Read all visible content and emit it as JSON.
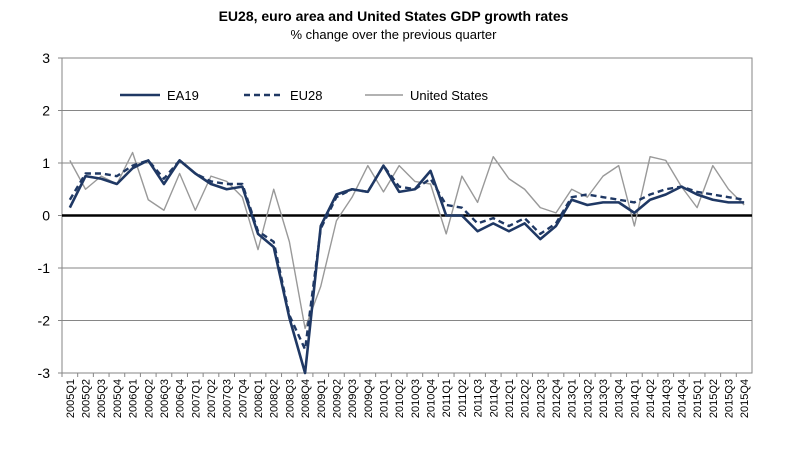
{
  "chart_data": {
    "type": "line",
    "title": "EU28, euro area and United States GDP growth rates",
    "subtitle": "% change over the previous quarter",
    "ylim": [
      -3,
      3
    ],
    "yticks": [
      -3,
      -2,
      -1,
      0,
      1,
      2,
      3
    ],
    "grid": true,
    "legend_position": "top-left",
    "categories": [
      "2005Q1",
      "2005Q2",
      "2005Q3",
      "2005Q4",
      "2006Q1",
      "2006Q2",
      "2006Q3",
      "2006Q4",
      "2007Q1",
      "2007Q2",
      "2007Q3",
      "2007Q4",
      "2008Q1",
      "2008Q2",
      "2008Q3",
      "2008Q4",
      "2009Q1",
      "2009Q2",
      "2009Q3",
      "2009Q4",
      "2010Q1",
      "2010Q2",
      "2010Q3",
      "2010Q4",
      "2011Q1",
      "2011Q2",
      "2011Q3",
      "2011Q4",
      "2012Q1",
      "2012Q2",
      "2012Q3",
      "2012Q4",
      "2013Q1",
      "2013Q2",
      "2013Q3",
      "2013Q4",
      "2014Q1",
      "2014Q2",
      "2014Q3",
      "2014Q4",
      "2015Q1",
      "2015Q2",
      "2015Q3",
      "2015Q4"
    ],
    "series": [
      {
        "name": "EA19",
        "style": "solid",
        "color": "#1f3864",
        "width": 2.6,
        "values": [
          0.15,
          0.75,
          0.7,
          0.6,
          0.9,
          1.05,
          0.6,
          1.05,
          0.8,
          0.6,
          0.5,
          0.55,
          -0.35,
          -0.6,
          -1.95,
          -3.0,
          -0.2,
          0.4,
          0.5,
          0.45,
          0.95,
          0.45,
          0.5,
          0.85,
          0.0,
          0.0,
          -0.3,
          -0.15,
          -0.3,
          -0.15,
          -0.45,
          -0.2,
          0.3,
          0.2,
          0.25,
          0.25,
          0.05,
          0.3,
          0.4,
          0.55,
          0.4,
          0.3,
          0.25,
          0.25
        ]
      },
      {
        "name": "EU28",
        "style": "dashed",
        "color": "#1f3864",
        "width": 2.4,
        "values": [
          0.3,
          0.8,
          0.8,
          0.75,
          0.95,
          1.05,
          0.7,
          1.05,
          0.8,
          0.65,
          0.6,
          0.6,
          -0.3,
          -0.5,
          -1.9,
          -2.55,
          -0.25,
          0.35,
          0.5,
          0.45,
          0.95,
          0.55,
          0.5,
          0.7,
          0.2,
          0.15,
          -0.15,
          -0.05,
          -0.2,
          -0.05,
          -0.35,
          -0.15,
          0.35,
          0.4,
          0.35,
          0.3,
          0.25,
          0.4,
          0.5,
          0.55,
          0.45,
          0.4,
          0.35,
          0.3
        ]
      },
      {
        "name": "United States",
        "style": "solid",
        "color": "#999999",
        "width": 1.4,
        "values": [
          1.05,
          0.5,
          0.75,
          0.6,
          1.2,
          0.3,
          0.1,
          0.8,
          0.1,
          0.75,
          0.65,
          0.35,
          -0.65,
          0.5,
          -0.5,
          -2.15,
          -1.35,
          -0.1,
          0.35,
          0.95,
          0.45,
          0.95,
          0.65,
          0.6,
          -0.35,
          0.75,
          0.25,
          1.12,
          0.7,
          0.5,
          0.15,
          0.05,
          0.5,
          0.35,
          0.75,
          0.95,
          -0.2,
          1.12,
          1.05,
          0.55,
          0.15,
          0.95,
          0.5,
          0.2
        ]
      }
    ]
  }
}
